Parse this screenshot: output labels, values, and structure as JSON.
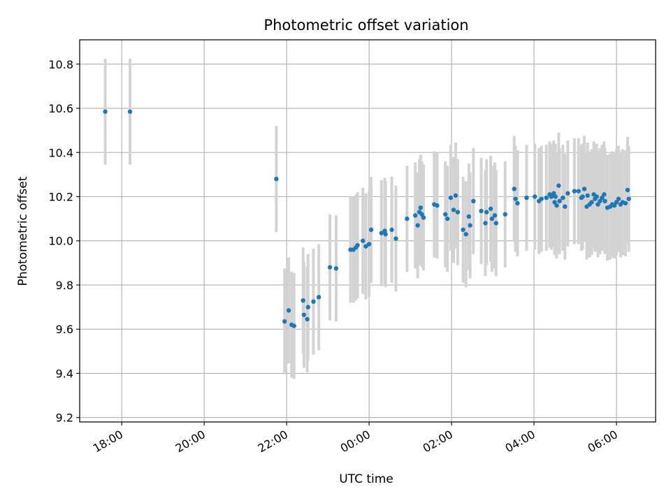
{
  "chart_data": {
    "type": "scatter",
    "title": "Photometric offset variation",
    "xlabel": "UTC time",
    "ylabel": "Photometric offset",
    "x_axis": {
      "unit": "hours from 18:00 UTC",
      "ticks": [
        0,
        2,
        4,
        6,
        8,
        10,
        12
      ],
      "tick_labels": [
        "18:00",
        "20:00",
        "22:00",
        "00:00",
        "02:00",
        "04:00",
        "06:00"
      ],
      "xlim": [
        -1.02,
        12.95
      ]
    },
    "y_axis": {
      "ticks": [
        9.2,
        9.4,
        9.6,
        9.8,
        10.0,
        10.2,
        10.4,
        10.6,
        10.8
      ],
      "tick_labels": [
        "9.2",
        "9.4",
        "9.6",
        "9.8",
        "10.0",
        "10.2",
        "10.4",
        "10.6",
        "10.8"
      ],
      "ylim": [
        9.18,
        10.91
      ]
    },
    "grid": true,
    "colors": {
      "marker": "#1f77b4",
      "errorbar": "#d3d3d3",
      "grid": "#b0b0b0",
      "axes": "#000000"
    },
    "error_halfwidth": 0.24,
    "series": [
      {
        "points": [
          [
            -0.4,
            10.585
          ],
          [
            0.2,
            10.585
          ],
          [
            3.75,
            10.28
          ],
          [
            3.95,
            9.635
          ],
          [
            4.05,
            9.685
          ],
          [
            4.12,
            9.62
          ],
          [
            4.18,
            9.615
          ],
          [
            4.4,
            9.73
          ],
          [
            4.42,
            9.665
          ],
          [
            4.5,
            9.645
          ],
          [
            4.52,
            9.7
          ],
          [
            4.65,
            9.725
          ],
          [
            4.78,
            9.745
          ],
          [
            5.05,
            9.88
          ],
          [
            5.2,
            9.875
          ],
          [
            5.55,
            9.96
          ],
          [
            5.62,
            9.96
          ],
          [
            5.68,
            9.97
          ],
          [
            5.72,
            9.98
          ],
          [
            5.85,
            10.0
          ],
          [
            5.92,
            9.975
          ],
          [
            6.0,
            9.985
          ],
          [
            6.05,
            10.05
          ],
          [
            6.3,
            10.035
          ],
          [
            6.38,
            10.045
          ],
          [
            6.4,
            10.03
          ],
          [
            6.55,
            10.05
          ],
          [
            6.65,
            10.01
          ],
          [
            6.92,
            10.1
          ],
          [
            7.12,
            10.115
          ],
          [
            7.18,
            10.07
          ],
          [
            7.22,
            10.13
          ],
          [
            7.25,
            10.15
          ],
          [
            7.28,
            10.12
          ],
          [
            7.32,
            10.105
          ],
          [
            7.58,
            10.165
          ],
          [
            7.65,
            10.16
          ],
          [
            7.85,
            10.12
          ],
          [
            7.9,
            10.1
          ],
          [
            7.98,
            10.195
          ],
          [
            8.05,
            10.14
          ],
          [
            8.1,
            10.205
          ],
          [
            8.15,
            10.13
          ],
          [
            8.28,
            10.05
          ],
          [
            8.35,
            10.03
          ],
          [
            8.42,
            10.11
          ],
          [
            8.45,
            10.07
          ],
          [
            8.53,
            10.18
          ],
          [
            8.72,
            10.135
          ],
          [
            8.82,
            10.08
          ],
          [
            8.85,
            10.13
          ],
          [
            8.95,
            10.145
          ],
          [
            8.98,
            10.1
          ],
          [
            9.05,
            10.115
          ],
          [
            9.08,
            10.08
          ],
          [
            9.3,
            10.12
          ],
          [
            9.52,
            10.235
          ],
          [
            9.55,
            10.19
          ],
          [
            9.6,
            10.17
          ],
          [
            9.82,
            10.195
          ],
          [
            10.02,
            10.2
          ],
          [
            10.12,
            10.18
          ],
          [
            10.18,
            10.19
          ],
          [
            10.3,
            10.195
          ],
          [
            10.38,
            10.21
          ],
          [
            10.42,
            10.2
          ],
          [
            10.48,
            10.215
          ],
          [
            10.5,
            10.175
          ],
          [
            10.52,
            10.2
          ],
          [
            10.55,
            10.16
          ],
          [
            10.6,
            10.25
          ],
          [
            10.62,
            10.18
          ],
          [
            10.7,
            10.195
          ],
          [
            10.75,
            10.155
          ],
          [
            10.82,
            10.215
          ],
          [
            10.98,
            10.225
          ],
          [
            11.08,
            10.225
          ],
          [
            11.15,
            10.195
          ],
          [
            11.18,
            10.2
          ],
          [
            11.22,
            10.235
          ],
          [
            11.28,
            10.155
          ],
          [
            11.3,
            10.205
          ],
          [
            11.35,
            10.165
          ],
          [
            11.4,
            10.175
          ],
          [
            11.45,
            10.21
          ],
          [
            11.48,
            10.19
          ],
          [
            11.52,
            10.2
          ],
          [
            11.55,
            10.165
          ],
          [
            11.6,
            10.18
          ],
          [
            11.65,
            10.195
          ],
          [
            11.7,
            10.21
          ],
          [
            11.72,
            10.18
          ],
          [
            11.78,
            10.15
          ],
          [
            11.85,
            10.155
          ],
          [
            11.9,
            10.165
          ],
          [
            11.95,
            10.16
          ],
          [
            12.0,
            10.175
          ],
          [
            12.05,
            10.19
          ],
          [
            12.1,
            10.165
          ],
          [
            12.15,
            10.175
          ],
          [
            12.22,
            10.17
          ],
          [
            12.27,
            10.23
          ],
          [
            12.3,
            10.19
          ]
        ]
      }
    ]
  }
}
